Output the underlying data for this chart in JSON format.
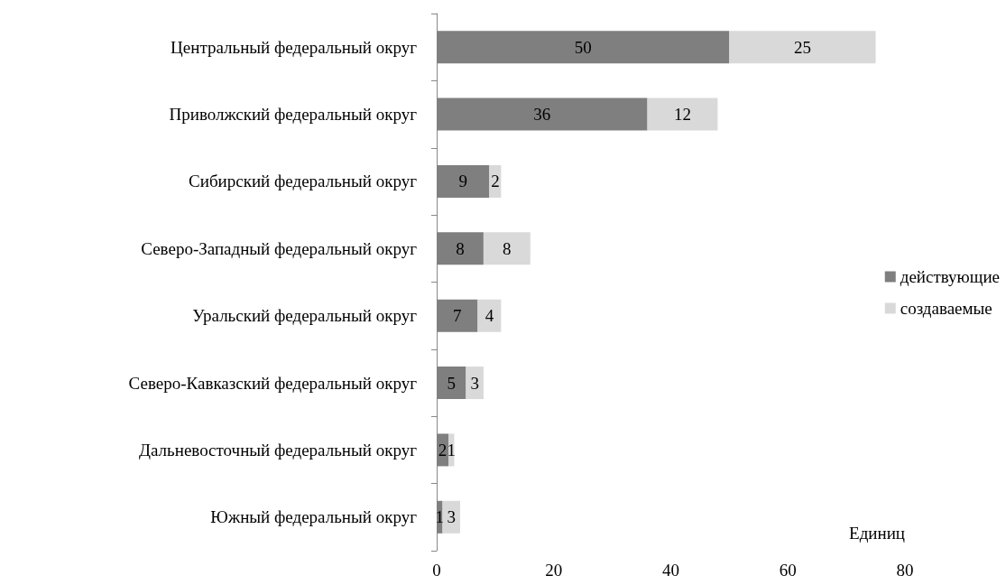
{
  "chart_data": {
    "type": "bar",
    "orientation": "horizontal",
    "stacked": true,
    "xlabel": "Единиц",
    "categories": [
      "Центральный федеральный округ",
      "Приволжский федеральный округ",
      "Сибирский федеральный округ",
      "Северо-Западный федеральный округ",
      "Уральский федеральный округ",
      "Северо-Кавказский федеральный округ",
      "Дальневосточный федеральный округ",
      "Южный федеральный округ"
    ],
    "series": [
      {
        "name": "действующие",
        "color": "#7f7f7f",
        "values": [
          50,
          36,
          9,
          8,
          7,
          5,
          2,
          1
        ]
      },
      {
        "name": "создаваемые",
        "color": "#d9d9d9",
        "values": [
          25,
          12,
          2,
          8,
          4,
          3,
          1,
          3
        ]
      }
    ],
    "xlim": [
      0,
      80
    ],
    "xticks": [
      0,
      20,
      40,
      60,
      80
    ],
    "data_labels": true,
    "grid": false,
    "legend": "right"
  }
}
